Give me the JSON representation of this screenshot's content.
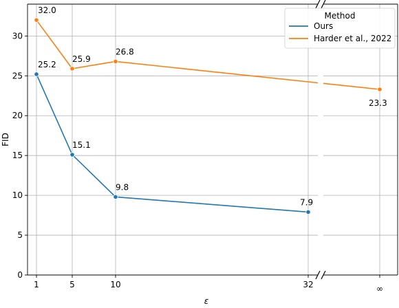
{
  "chart_data": {
    "type": "line",
    "xlabel": "ε",
    "ylabel": "FID",
    "ylim": [
      0,
      34
    ],
    "yticks": [
      0,
      5,
      10,
      15,
      20,
      25,
      30
    ],
    "xticks": [
      "1",
      "5",
      "10",
      "32",
      "∞"
    ],
    "x_axis_break": "between 32 and ∞",
    "grid": true,
    "legend": {
      "title": "Method",
      "placement": "top-right"
    },
    "series": [
      {
        "name": "Ours",
        "color": "#1f77b4",
        "points": [
          {
            "x": "1",
            "y": 25.2,
            "label": "25.2"
          },
          {
            "x": "5",
            "y": 15.1,
            "label": "15.1"
          },
          {
            "x": "10",
            "y": 9.8,
            "label": "9.8"
          },
          {
            "x": "32",
            "y": 7.9,
            "label": "7.9"
          }
        ]
      },
      {
        "name": "Harder et al., 2022",
        "color": "#ff7f0e",
        "points": [
          {
            "x": "1",
            "y": 32.0,
            "label": "32.0"
          },
          {
            "x": "5",
            "y": 25.9,
            "label": "25.9"
          },
          {
            "x": "10",
            "y": 26.8,
            "label": "26.8"
          },
          {
            "x": "∞",
            "y": 23.3,
            "label": "23.3"
          }
        ]
      }
    ]
  }
}
